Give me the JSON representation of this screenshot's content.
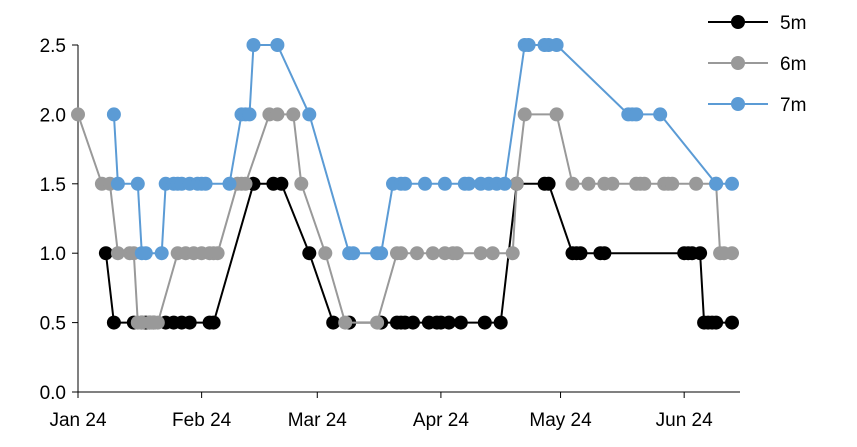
{
  "chart_data": {
    "type": "line",
    "title": "",
    "xlabel": "",
    "ylabel": "",
    "x_range": [
      "2024-01-01",
      "2024-06-15"
    ],
    "ylim": [
      0,
      2.5
    ],
    "y_ticks": [
      0.0,
      0.5,
      1.0,
      1.5,
      2.0,
      2.5
    ],
    "y_tick_labels": [
      "0.0",
      "0.5",
      "1.0",
      "1.5",
      "2.0",
      "2.5"
    ],
    "x_ticks": [
      "2024-01-01",
      "2024-02-01",
      "2024-03-01",
      "2024-04-01",
      "2024-05-01",
      "2024-06-01"
    ],
    "x_tick_labels": [
      "Jan 24",
      "Feb 24",
      "Mar 24",
      "Apr 24",
      "May 24",
      "Jun 24"
    ],
    "grid": false,
    "legend_position": "top-right",
    "series": [
      {
        "name": "5m",
        "color": "#000000",
        "points": [
          [
            "2024-01-08",
            1.0
          ],
          [
            "2024-01-10",
            0.5
          ],
          [
            "2024-01-15",
            0.5
          ],
          [
            "2024-01-17",
            0.5
          ],
          [
            "2024-01-18",
            0.5
          ],
          [
            "2024-01-19",
            0.5
          ],
          [
            "2024-01-20",
            0.5
          ],
          [
            "2024-01-23",
            0.5
          ],
          [
            "2024-01-25",
            0.5
          ],
          [
            "2024-01-27",
            0.5
          ],
          [
            "2024-01-29",
            0.5
          ],
          [
            "2024-02-03",
            0.5
          ],
          [
            "2024-02-04",
            0.5
          ],
          [
            "2024-02-14",
            1.5
          ],
          [
            "2024-02-19",
            1.5
          ],
          [
            "2024-02-21",
            1.5
          ],
          [
            "2024-02-28",
            1.0
          ],
          [
            "2024-03-05",
            0.5
          ],
          [
            "2024-03-09",
            0.5
          ],
          [
            "2024-03-17",
            0.5
          ],
          [
            "2024-03-21",
            0.5
          ],
          [
            "2024-03-22",
            0.5
          ],
          [
            "2024-03-23",
            0.5
          ],
          [
            "2024-03-25",
            0.5
          ],
          [
            "2024-03-29",
            0.5
          ],
          [
            "2024-03-31",
            0.5
          ],
          [
            "2024-04-01",
            0.5
          ],
          [
            "2024-04-03",
            0.5
          ],
          [
            "2024-04-06",
            0.5
          ],
          [
            "2024-04-12",
            0.5
          ],
          [
            "2024-04-16",
            0.5
          ],
          [
            "2024-04-20",
            1.5
          ],
          [
            "2024-04-27",
            1.5
          ],
          [
            "2024-04-28",
            1.5
          ],
          [
            "2024-05-04",
            1.0
          ],
          [
            "2024-05-05",
            1.0
          ],
          [
            "2024-05-06",
            1.0
          ],
          [
            "2024-05-11",
            1.0
          ],
          [
            "2024-05-12",
            1.0
          ],
          [
            "2024-06-01",
            1.0
          ],
          [
            "2024-06-02",
            1.0
          ],
          [
            "2024-06-03",
            1.0
          ],
          [
            "2024-06-05",
            1.0
          ],
          [
            "2024-06-06",
            0.5
          ],
          [
            "2024-06-07",
            0.5
          ],
          [
            "2024-06-08",
            0.5
          ],
          [
            "2024-06-09",
            0.5
          ],
          [
            "2024-06-13",
            0.5
          ]
        ]
      },
      {
        "name": "6m",
        "color": "#999999",
        "points": [
          [
            "2024-01-01",
            2.0
          ],
          [
            "2024-01-07",
            1.5
          ],
          [
            "2024-01-09",
            1.5
          ],
          [
            "2024-01-11",
            1.0
          ],
          [
            "2024-01-14",
            1.0
          ],
          [
            "2024-01-15",
            1.0
          ],
          [
            "2024-01-16",
            0.5
          ],
          [
            "2024-01-17",
            0.5
          ],
          [
            "2024-01-19",
            0.5
          ],
          [
            "2024-01-20",
            0.5
          ],
          [
            "2024-01-21",
            0.5
          ],
          [
            "2024-01-26",
            1.0
          ],
          [
            "2024-01-28",
            1.0
          ],
          [
            "2024-01-30",
            1.0
          ],
          [
            "2024-02-01",
            1.0
          ],
          [
            "2024-02-03",
            1.0
          ],
          [
            "2024-02-04",
            1.0
          ],
          [
            "2024-02-05",
            1.0
          ],
          [
            "2024-02-10",
            1.5
          ],
          [
            "2024-02-11",
            1.5
          ],
          [
            "2024-02-12",
            1.5
          ],
          [
            "2024-02-18",
            2.0
          ],
          [
            "2024-02-20",
            2.0
          ],
          [
            "2024-02-24",
            2.0
          ],
          [
            "2024-02-26",
            1.5
          ],
          [
            "2024-03-03",
            1.0
          ],
          [
            "2024-03-08",
            0.5
          ],
          [
            "2024-03-16",
            0.5
          ],
          [
            "2024-03-21",
            1.0
          ],
          [
            "2024-03-22",
            1.0
          ],
          [
            "2024-03-26",
            1.0
          ],
          [
            "2024-03-30",
            1.0
          ],
          [
            "2024-04-02",
            1.0
          ],
          [
            "2024-04-04",
            1.0
          ],
          [
            "2024-04-05",
            1.0
          ],
          [
            "2024-04-11",
            1.0
          ],
          [
            "2024-04-14",
            1.0
          ],
          [
            "2024-04-19",
            1.0
          ],
          [
            "2024-04-20",
            1.5
          ],
          [
            "2024-04-22",
            2.0
          ],
          [
            "2024-04-30",
            2.0
          ],
          [
            "2024-05-04",
            1.5
          ],
          [
            "2024-05-08",
            1.5
          ],
          [
            "2024-05-12",
            1.5
          ],
          [
            "2024-05-14",
            1.5
          ],
          [
            "2024-05-20",
            1.5
          ],
          [
            "2024-05-21",
            1.5
          ],
          [
            "2024-05-22",
            1.5
          ],
          [
            "2024-05-27",
            1.5
          ],
          [
            "2024-05-28",
            1.5
          ],
          [
            "2024-05-29",
            1.5
          ],
          [
            "2024-06-04",
            1.5
          ],
          [
            "2024-06-09",
            1.5
          ],
          [
            "2024-06-10",
            1.0
          ],
          [
            "2024-06-11",
            1.0
          ],
          [
            "2024-06-13",
            1.0
          ]
        ]
      },
      {
        "name": "7m",
        "color": "#5b9bd5",
        "points": [
          [
            "2024-01-10",
            2.0
          ],
          [
            "2024-01-11",
            1.5
          ],
          [
            "2024-01-16",
            1.5
          ],
          [
            "2024-01-17",
            1.0
          ],
          [
            "2024-01-18",
            1.0
          ],
          [
            "2024-01-22",
            1.0
          ],
          [
            "2024-01-23",
            1.5
          ],
          [
            "2024-01-25",
            1.5
          ],
          [
            "2024-01-26",
            1.5
          ],
          [
            "2024-01-27",
            1.5
          ],
          [
            "2024-01-29",
            1.5
          ],
          [
            "2024-01-31",
            1.5
          ],
          [
            "2024-02-01",
            1.5
          ],
          [
            "2024-02-02",
            1.5
          ],
          [
            "2024-02-08",
            1.5
          ],
          [
            "2024-02-11",
            2.0
          ],
          [
            "2024-02-12",
            2.0
          ],
          [
            "2024-02-13",
            2.0
          ],
          [
            "2024-02-14",
            2.5
          ],
          [
            "2024-02-20",
            2.5
          ],
          [
            "2024-02-28",
            2.0
          ],
          [
            "2024-03-09",
            1.0
          ],
          [
            "2024-03-10",
            1.0
          ],
          [
            "2024-03-16",
            1.0
          ],
          [
            "2024-03-17",
            1.0
          ],
          [
            "2024-03-20",
            1.5
          ],
          [
            "2024-03-22",
            1.5
          ],
          [
            "2024-03-23",
            1.5
          ],
          [
            "2024-03-28",
            1.5
          ],
          [
            "2024-04-02",
            1.5
          ],
          [
            "2024-04-07",
            1.5
          ],
          [
            "2024-04-08",
            1.5
          ],
          [
            "2024-04-11",
            1.5
          ],
          [
            "2024-04-13",
            1.5
          ],
          [
            "2024-04-15",
            1.5
          ],
          [
            "2024-04-17",
            1.5
          ],
          [
            "2024-04-22",
            2.5
          ],
          [
            "2024-04-23",
            2.5
          ],
          [
            "2024-04-27",
            2.5
          ],
          [
            "2024-04-28",
            2.5
          ],
          [
            "2024-04-30",
            2.5
          ],
          [
            "2024-05-18",
            2.0
          ],
          [
            "2024-05-19",
            2.0
          ],
          [
            "2024-05-20",
            2.0
          ],
          [
            "2024-05-26",
            2.0
          ],
          [
            "2024-06-09",
            1.5
          ],
          [
            "2024-06-13",
            1.5
          ]
        ]
      }
    ]
  }
}
